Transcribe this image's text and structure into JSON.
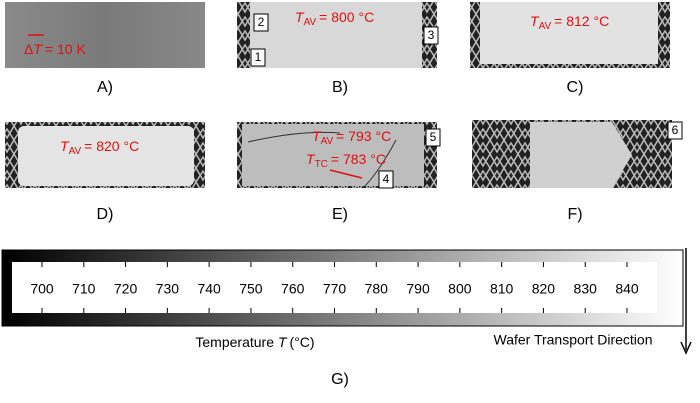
{
  "panels": [
    {
      "label": "A)",
      "annotations": [
        {
          "delta": "Δ",
          "symbol": "T",
          "text": "= 10 K"
        }
      ]
    },
    {
      "label": "B)",
      "annotations": [
        {
          "symbol": "T",
          "subscript": "AV",
          "text": "= 800 °C"
        }
      ],
      "markers": [
        "2",
        "1",
        "3"
      ]
    },
    {
      "label": "C)",
      "annotations": [
        {
          "symbol": "T",
          "subscript": "AV",
          "text": "= 812 °C"
        }
      ]
    },
    {
      "label": "D)",
      "annotations": [
        {
          "symbol": "T",
          "subscript": "AV",
          "text": "= 820 °C"
        }
      ]
    },
    {
      "label": "E)",
      "annotations": [
        {
          "symbol": "T",
          "subscript": "AV",
          "text": "= 793 °C"
        },
        {
          "symbol": "T",
          "subscript": "TC",
          "text": "= 783 °C"
        }
      ],
      "markers": [
        "5",
        "4"
      ]
    },
    {
      "label": "F)",
      "markers": [
        "6"
      ]
    }
  ],
  "colorbar": {
    "ticks": [
      700,
      710,
      720,
      730,
      740,
      750,
      760,
      770,
      780,
      790,
      800,
      810,
      820,
      830,
      840
    ],
    "axis_label": {
      "prefix": "Temperature",
      "symbol": "T",
      "unit": "(°C)"
    },
    "direction_label": "Wafer Transport Direction"
  },
  "figure_label": "G)"
}
